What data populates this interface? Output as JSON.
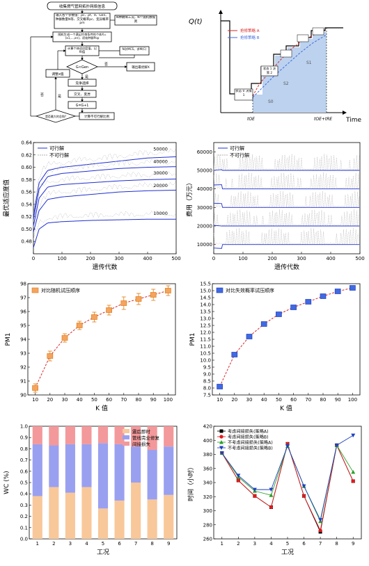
{
  "panels": {
    "flowchart": {
      "nodes": [
        "收集燃气管网拓扑网络信息",
        "输入各个参数值：ρc、ρf、θ、Gen、种群数量N等、交叉概率pc、变异概率pm",
        "N种故障工况，N个随机数规则",
        "随机生成一个满足约束条件的个体X=(x1,...,xn)，初始种群Pop",
        "计算个体适应度值，记fit值",
        "N次MCS，求M(C)",
        "G<Gen",
        "输出最优解X",
        "竞争选择",
        "交叉、变异",
        "G=G+1",
        "调整x值",
        "计算不可行解比例",
        "是否最大的总和?"
      ],
      "edge_labels": [
        "否",
        "是",
        "是",
        "否"
      ]
    },
    "timeline": {
      "ylabel": "Q(t)",
      "xlabel": "Time",
      "legend": [
        "抢修策略 A",
        "抢修策略 B"
      ],
      "labels": [
        "状态 0 决策 1",
        "状态 1 决策 2",
        "S1",
        "S2",
        "S0"
      ],
      "x_ticks": [
        "tOE",
        "tOE+tRE"
      ],
      "colors": {
        "strategyA": "#d62728",
        "strategyB": "#4169e1",
        "area": "#bcd2ee"
      }
    },
    "fitness": {
      "ylabel": "最优适应度值",
      "xlabel": "遗传代数",
      "legend": [
        "可行解",
        "不可行解"
      ],
      "annotations": [
        "50000",
        "40000",
        "30000",
        "20000",
        "10000"
      ]
    },
    "cost": {
      "ylabel": "费用（万元）",
      "xlabel": "遗传代数",
      "legend": [
        "可行解",
        "不可行解"
      ]
    },
    "pm_left": {
      "ylabel": "PM1",
      "xlabel": "K 值",
      "legend": [
        "对比随机试压顺序"
      ]
    },
    "pm_right": {
      "ylabel": "PM1",
      "xlabel": "K 值",
      "legend": [
        "对比失效概率试压顺序"
      ]
    },
    "wc": {
      "ylabel": "WC (%)",
      "xlabel": "工况",
      "legend": [
        "震后即时",
        "管线完全修复",
        "间接损失"
      ]
    },
    "time": {
      "ylabel": "时间（小时）",
      "xlabel": "工况",
      "legend": [
        "考虑间接损失(策略A)",
        "考虑间接损失(策略B)",
        "不考虑间接损失(策略A)",
        "不考虑间接损失(策略B)"
      ]
    }
  },
  "chart_data": [
    {
      "type": "line",
      "id": "fitness",
      "x_range": [
        0,
        500
      ],
      "ylim": [
        0.46,
        0.64
      ],
      "x_ticks": [
        0,
        100,
        200,
        300,
        400,
        500
      ],
      "y_ticks": [
        0.48,
        0.5,
        0.52,
        0.54,
        0.56,
        0.58,
        0.6,
        0.62,
        0.64
      ],
      "series": [
        {
          "name": "50000",
          "x": [
            0,
            20,
            50,
            100,
            200,
            300,
            400,
            500
          ],
          "y": [
            0.52,
            0.575,
            0.595,
            0.6,
            0.605,
            0.61,
            0.615,
            0.617
          ]
        },
        {
          "name": "40000",
          "x": [
            0,
            20,
            50,
            100,
            200,
            300,
            400,
            500
          ],
          "y": [
            0.515,
            0.565,
            0.585,
            0.59,
            0.594,
            0.598,
            0.6,
            0.601
          ]
        },
        {
          "name": "30000",
          "x": [
            0,
            20,
            50,
            100,
            200,
            300,
            400,
            500
          ],
          "y": [
            0.505,
            0.55,
            0.568,
            0.572,
            0.575,
            0.578,
            0.58,
            0.581
          ]
        },
        {
          "name": "20000",
          "x": [
            0,
            20,
            50,
            100,
            200,
            300,
            400,
            500
          ],
          "y": [
            0.495,
            0.53,
            0.548,
            0.552,
            0.556,
            0.56,
            0.562,
            0.563
          ]
        },
        {
          "name": "10000",
          "x": [
            0,
            20,
            50,
            100,
            200,
            300,
            400,
            500
          ],
          "y": [
            0.47,
            0.5,
            0.51,
            0.512,
            0.514,
            0.515,
            0.516,
            0.516
          ]
        }
      ]
    },
    {
      "type": "line",
      "id": "cost",
      "x_range": [
        0,
        500
      ],
      "ylim": [
        5000,
        65000
      ],
      "x_ticks": [
        0,
        100,
        200,
        300,
        400,
        500
      ],
      "y_ticks": [
        10000,
        20000,
        30000,
        40000,
        50000,
        60000
      ],
      "series": [
        {
          "name": "可行解",
          "levels": [
            50000,
            40000,
            30000,
            20000,
            10000
          ]
        }
      ]
    },
    {
      "type": "scatter",
      "id": "pm_left",
      "x": [
        10,
        20,
        30,
        40,
        50,
        60,
        70,
        80,
        90,
        100
      ],
      "y": [
        90.5,
        92.8,
        94.1,
        95.0,
        95.6,
        96.1,
        96.6,
        96.9,
        97.2,
        97.5
      ],
      "err": [
        0.3,
        0.35,
        0.3,
        0.3,
        0.35,
        0.35,
        0.45,
        0.4,
        0.4,
        0.35
      ],
      "ylim": [
        90,
        98
      ],
      "y_ticks": [
        90,
        91,
        92,
        93,
        94,
        95,
        96,
        97,
        98
      ],
      "x_ticks": [
        10,
        20,
        30,
        40,
        50,
        60,
        70,
        80,
        90,
        100
      ],
      "colors": {
        "marker": "#f4a460",
        "edge": "#e07b10",
        "fit": "#d62728"
      }
    },
    {
      "type": "scatter",
      "id": "pm_right",
      "x": [
        10,
        20,
        30,
        40,
        50,
        60,
        70,
        80,
        90,
        100
      ],
      "y": [
        8.1,
        10.4,
        11.7,
        12.6,
        13.3,
        13.8,
        14.2,
        14.6,
        14.95,
        15.2
      ],
      "err": [
        0.12,
        0.12,
        0.12,
        0.15,
        0.15,
        0.15,
        0.15,
        0.15,
        0.12,
        0.12
      ],
      "ylim": [
        7.5,
        15.5
      ],
      "y_ticks": [
        7.5,
        8.0,
        8.5,
        9.0,
        9.5,
        10.0,
        10.5,
        11.0,
        11.5,
        12.0,
        12.5,
        13.0,
        13.5,
        14.0,
        14.5,
        15.0,
        15.5
      ],
      "x_ticks": [
        10,
        20,
        30,
        40,
        50,
        60,
        70,
        80,
        90,
        100
      ],
      "colors": {
        "marker": "#4169e1",
        "edge": "#1f3fbf",
        "fit": "#d62728"
      }
    },
    {
      "type": "bar",
      "id": "wc",
      "categories": [
        "1",
        "2",
        "3",
        "4",
        "5",
        "6",
        "7",
        "8",
        "9"
      ],
      "series": [
        {
          "name": "震后即时",
          "values": [
            0.38,
            0.46,
            0.41,
            0.46,
            0.27,
            0.34,
            0.5,
            0.35,
            0.39
          ]
        },
        {
          "name": "管线完全修复",
          "values": [
            0.84,
            0.83,
            0.84,
            0.84,
            0.85,
            0.84,
            0.82,
            0.79,
            0.82
          ]
        },
        {
          "name": "间接损失",
          "values": [
            1.0,
            1.0,
            1.0,
            1.0,
            1.0,
            1.0,
            1.0,
            1.0,
            1.0
          ]
        }
      ],
      "ylim": [
        0,
        1.0
      ],
      "y_ticks": [
        0.0,
        0.1,
        0.2,
        0.3,
        0.4,
        0.5,
        0.6,
        0.7,
        0.8,
        0.9,
        1.0
      ],
      "colors": {
        "s0": "#f8c89a",
        "s1": "#9aa0f0",
        "s2": "#f3999b"
      }
    },
    {
      "type": "line",
      "id": "time",
      "categories": [
        "1",
        "2",
        "3",
        "4",
        "5",
        "6",
        "7",
        "8",
        "9"
      ],
      "series": [
        {
          "name": "考虑间接损失(策略A)",
          "values": [
            382,
            343,
            321,
            305,
            395,
            321,
            270,
            393,
            342
          ],
          "color": "#000000",
          "marker": "square"
        },
        {
          "name": "考虑间接损失(策略B)",
          "values": [
            382,
            343,
            321,
            305,
            395,
            321,
            272,
            393,
            342
          ],
          "color": "#e31a1c",
          "marker": "circle"
        },
        {
          "name": "不考虑间接损失(策略A)",
          "values": [
            382,
            348,
            328,
            322,
            392,
            335,
            285,
            393,
            355
          ],
          "color": "#2ca02c",
          "marker": "triangle"
        },
        {
          "name": "不考虑间接损失(策略B)",
          "values": [
            382,
            350,
            330,
            330,
            392,
            335,
            287,
            393,
            407
          ],
          "color": "#1f3fbf",
          "marker": "triangle-down"
        }
      ],
      "ylim": [
        260,
        420
      ],
      "y_ticks": [
        260,
        280,
        300,
        320,
        340,
        360,
        380,
        400,
        420
      ]
    }
  ]
}
